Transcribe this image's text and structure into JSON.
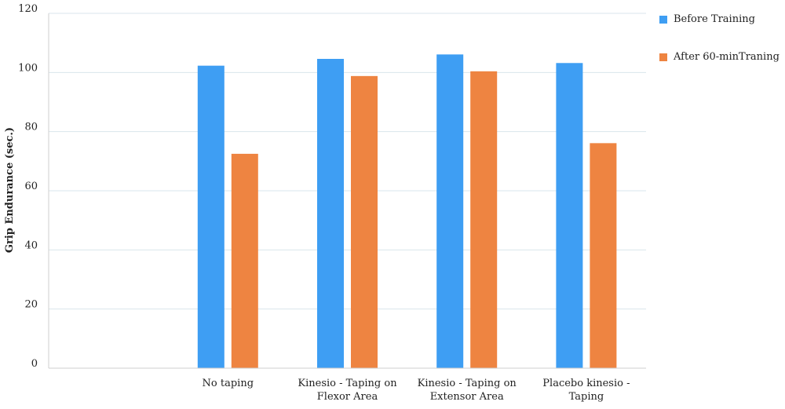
{
  "chart_data": {
    "type": "bar",
    "title": "",
    "xlabel": "",
    "ylabel": "Grip Endurance (sec.)",
    "ylim": [
      0,
      120
    ],
    "yticks": [
      0,
      20,
      40,
      60,
      80,
      100,
      120
    ],
    "grid": true,
    "legend_position": "top-right",
    "categories": [
      [
        "",
        ""
      ],
      [
        "No taping",
        ""
      ],
      [
        "Kinesio - Taping on",
        "Flexor Area"
      ],
      [
        "Kinesio - Taping on",
        "Extensor Area"
      ],
      [
        "Placebo kinesio -",
        "Taping"
      ]
    ],
    "series": [
      {
        "name": "Before Training",
        "color": "#3e9ef3",
        "values": [
          null,
          102.3,
          104.6,
          106.1,
          103.2
        ]
      },
      {
        "name": "After 60-minTraning",
        "color": "#ee8441",
        "values": [
          null,
          72.5,
          98.8,
          100.4,
          76.1
        ]
      }
    ]
  }
}
